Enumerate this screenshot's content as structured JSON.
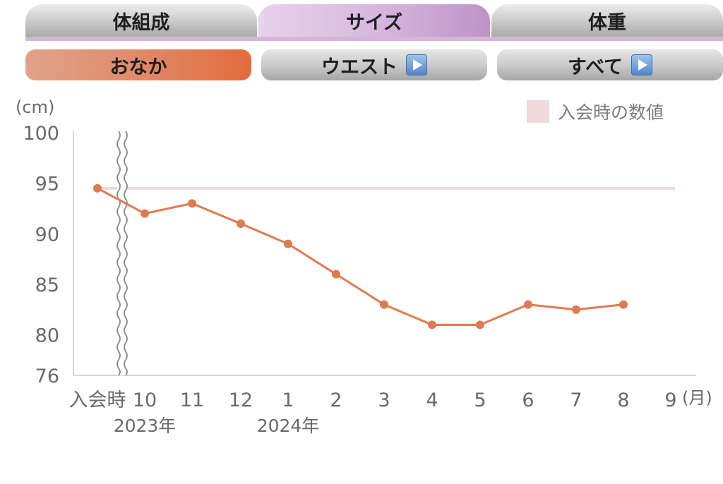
{
  "tabs": [
    {
      "label": "体組成"
    },
    {
      "label": "サイズ"
    },
    {
      "label": "体重"
    }
  ],
  "subtabs": [
    {
      "label": "おなか"
    },
    {
      "label": "ウエスト"
    },
    {
      "label": "すべて"
    }
  ],
  "legend": {
    "label": "入会時の数値",
    "color": "#f0d9d9"
  },
  "colors": {
    "line": "#e07a50",
    "baseline": "#f0d9d9",
    "active_tab": "#d8b8de",
    "active_subtab": "#e36b3c"
  },
  "chart_data": {
    "type": "line",
    "ylabel": "(cm)",
    "ylim": [
      76,
      100
    ],
    "yticks": [
      76,
      80,
      85,
      90,
      95,
      100
    ],
    "x_unit": "(月)",
    "categories": [
      "入会時",
      "10",
      "11",
      "12",
      "1",
      "2",
      "3",
      "4",
      "5",
      "6",
      "7",
      "8",
      "9"
    ],
    "year_labels": [
      {
        "label": "2023年",
        "at": "10"
      },
      {
        "label": "2024年",
        "at": "1"
      }
    ],
    "series": [
      {
        "values": [
          94.5,
          92,
          93,
          91,
          89,
          86,
          83,
          81,
          81,
          83,
          82.5,
          83,
          null
        ]
      }
    ],
    "baseline": {
      "label": "入会時の数値",
      "value": 94.5
    },
    "axis_break_after": "入会時",
    "grid": false
  }
}
